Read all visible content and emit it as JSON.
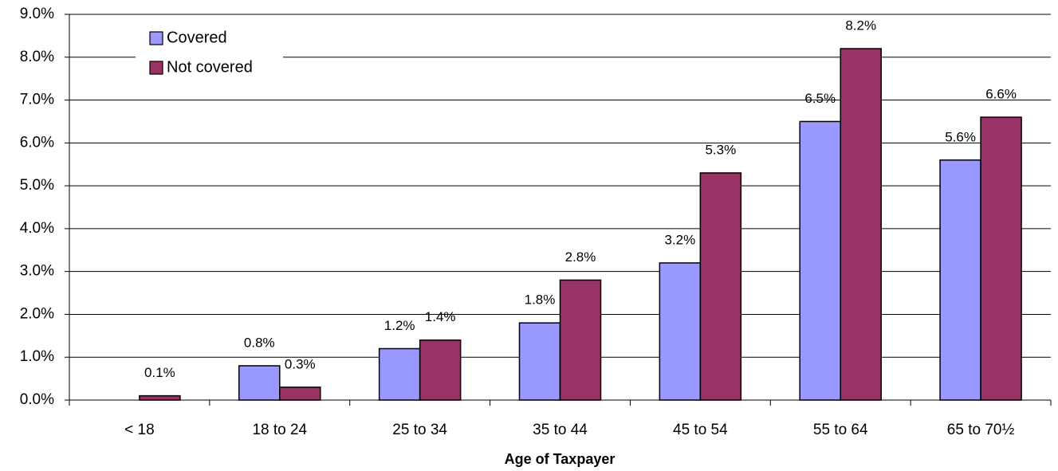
{
  "chart_data": {
    "type": "bar",
    "x_label": "Age of Taxpayer",
    "categories": [
      "< 18",
      "18 to 24",
      "25 to 34",
      "35 to 44",
      "45 to 54",
      "55 to 64",
      "65 to 70½"
    ],
    "series": [
      {
        "name": "Covered",
        "color": "#9999ff",
        "values": [
          null,
          0.8,
          1.2,
          1.8,
          3.2,
          6.5,
          5.6
        ],
        "value_labels": [
          null,
          "0.8%",
          "1.2%",
          "1.8%",
          "3.2%",
          "6.5%",
          "5.6%"
        ]
      },
      {
        "name": "Not covered",
        "color": "#993366",
        "values": [
          0.1,
          0.3,
          1.4,
          2.8,
          5.3,
          8.2,
          6.6
        ],
        "value_labels": [
          "0.1%",
          "0.3%",
          "1.4%",
          "2.8%",
          "5.3%",
          "8.2%",
          "6.6%"
        ]
      }
    ],
    "ylim": [
      0,
      9
    ],
    "yticks": [
      {
        "value": 0,
        "label": "0.0%"
      },
      {
        "value": 1,
        "label": "1.0%"
      },
      {
        "value": 2,
        "label": "2.0%"
      },
      {
        "value": 3,
        "label": "3.0%"
      },
      {
        "value": 4,
        "label": "4.0%"
      },
      {
        "value": 5,
        "label": "5.0%"
      },
      {
        "value": 6,
        "label": "6.0%"
      },
      {
        "value": 7,
        "label": "7.0%"
      },
      {
        "value": 8,
        "label": "8.0%"
      },
      {
        "value": 9,
        "label": "9.0%"
      }
    ],
    "grid": true,
    "legend": "top-left"
  }
}
